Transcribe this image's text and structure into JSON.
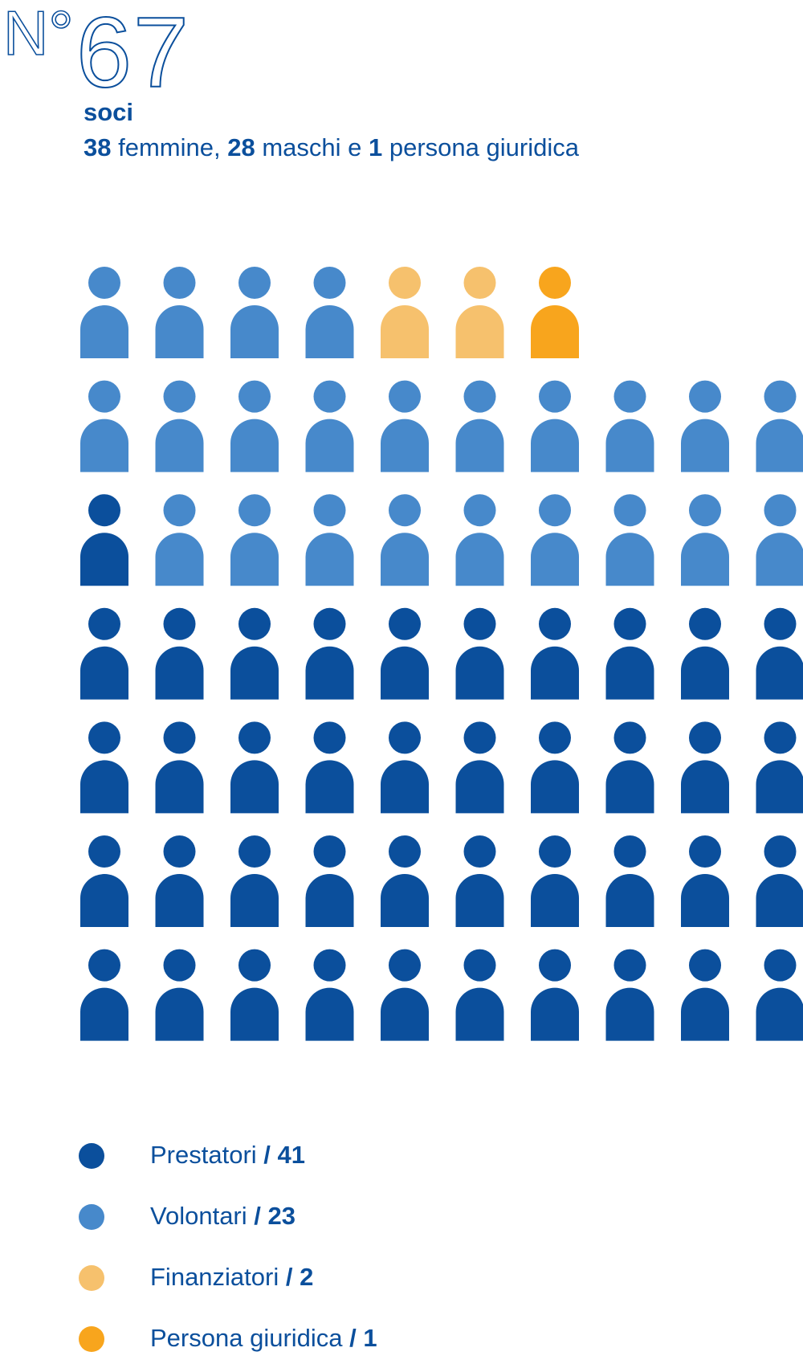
{
  "header": {
    "no_label": "N°",
    "number": "67",
    "soci_label": "soci",
    "females_count": "38",
    "females_label": "femmine,",
    "males_count": "28",
    "males_label": "maschi e",
    "legal_count": "1",
    "legal_label": "persona giuridica"
  },
  "colors": {
    "prestatori": "#0b4f9c",
    "volontari": "#4789cb",
    "finanziatori": "#f6c16d",
    "persona_giuridica": "#f8a51d"
  },
  "chart_data": {
    "type": "pictogram",
    "title": "",
    "total": 67,
    "series": [
      {
        "name": "Prestatori",
        "value": 41,
        "color_key": "prestatori"
      },
      {
        "name": "Volontari",
        "value": 23,
        "color_key": "volontari"
      },
      {
        "name": "Finanziatori",
        "value": 2,
        "color_key": "finanziatori"
      },
      {
        "name": "Persona giuridica",
        "value": 1,
        "color_key": "persona_giuridica"
      }
    ],
    "rows": [
      [
        "volontari",
        "volontari",
        "volontari",
        "volontari",
        "finanziatori",
        "finanziatori",
        "persona_giuridica"
      ],
      [
        "volontari",
        "volontari",
        "volontari",
        "volontari",
        "volontari",
        "volontari",
        "volontari",
        "volontari",
        "volontari",
        "volontari"
      ],
      [
        "prestatori",
        "volontari",
        "volontari",
        "volontari",
        "volontari",
        "volontari",
        "volontari",
        "volontari",
        "volontari",
        "volontari"
      ],
      [
        "prestatori",
        "prestatori",
        "prestatori",
        "prestatori",
        "prestatori",
        "prestatori",
        "prestatori",
        "prestatori",
        "prestatori",
        "prestatori"
      ],
      [
        "prestatori",
        "prestatori",
        "prestatori",
        "prestatori",
        "prestatori",
        "prestatori",
        "prestatori",
        "prestatori",
        "prestatori",
        "prestatori"
      ],
      [
        "prestatori",
        "prestatori",
        "prestatori",
        "prestatori",
        "prestatori",
        "prestatori",
        "prestatori",
        "prestatori",
        "prestatori",
        "prestatori"
      ],
      [
        "prestatori",
        "prestatori",
        "prestatori",
        "prestatori",
        "prestatori",
        "prestatori",
        "prestatori",
        "prestatori",
        "prestatori",
        "prestatori"
      ]
    ]
  },
  "legend": [
    {
      "label": "Prestatori",
      "value": "/ 41",
      "color_key": "prestatori"
    },
    {
      "label": "Volontari",
      "value": "/ 23",
      "color_key": "volontari"
    },
    {
      "label": "Finanziatori",
      "value": "/ 2",
      "color_key": "finanziatori"
    },
    {
      "label": "Persona giuridica",
      "value": "/ 1",
      "color_key": "persona_giuridica"
    }
  ]
}
